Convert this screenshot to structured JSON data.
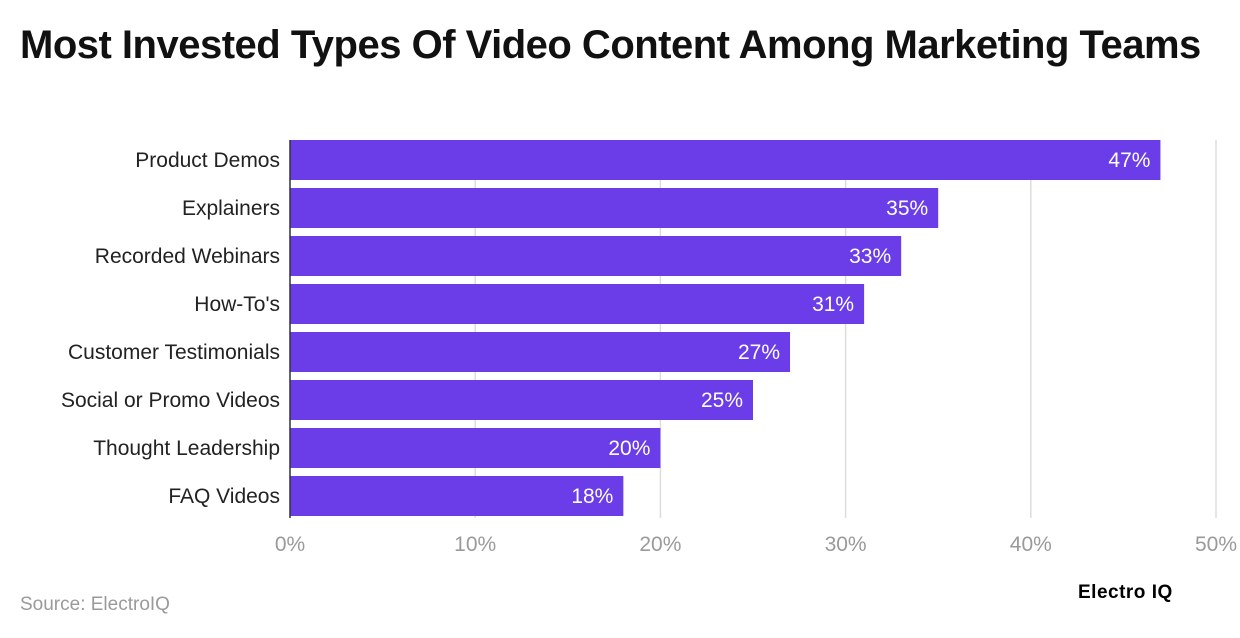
{
  "title": "Most Invested Types Of Video Content Among Marketing Teams",
  "source": "Source: ElectroIQ",
  "brand": "Electro IQ",
  "colors": {
    "bar": "#6A3DE8",
    "grid": "#dddddd",
    "tick_text": "#9a9a9a",
    "label_text": "#222222",
    "value_text": "#ffffff"
  },
  "chart_data": {
    "type": "bar",
    "orientation": "horizontal",
    "title": "Most Invested Types Of Video Content Among Marketing Teams",
    "categories": [
      "Product Demos",
      "Explainers",
      "Recorded Webinars",
      "How-To's",
      "Customer Testimonials",
      "Social or Promo Videos",
      "Thought Leadership",
      "FAQ Videos"
    ],
    "values": [
      47,
      35,
      33,
      31,
      27,
      25,
      20,
      18
    ],
    "value_labels": [
      "47%",
      "35%",
      "33%",
      "31%",
      "27%",
      "25%",
      "20%",
      "18%"
    ],
    "xlim": [
      0,
      50
    ],
    "xticks": [
      0,
      10,
      20,
      30,
      40,
      50
    ],
    "xtick_labels": [
      "0%",
      "10%",
      "20%",
      "30%",
      "40%",
      "50%"
    ],
    "xlabel": "",
    "ylabel": "",
    "grid": true,
    "legend": false
  }
}
